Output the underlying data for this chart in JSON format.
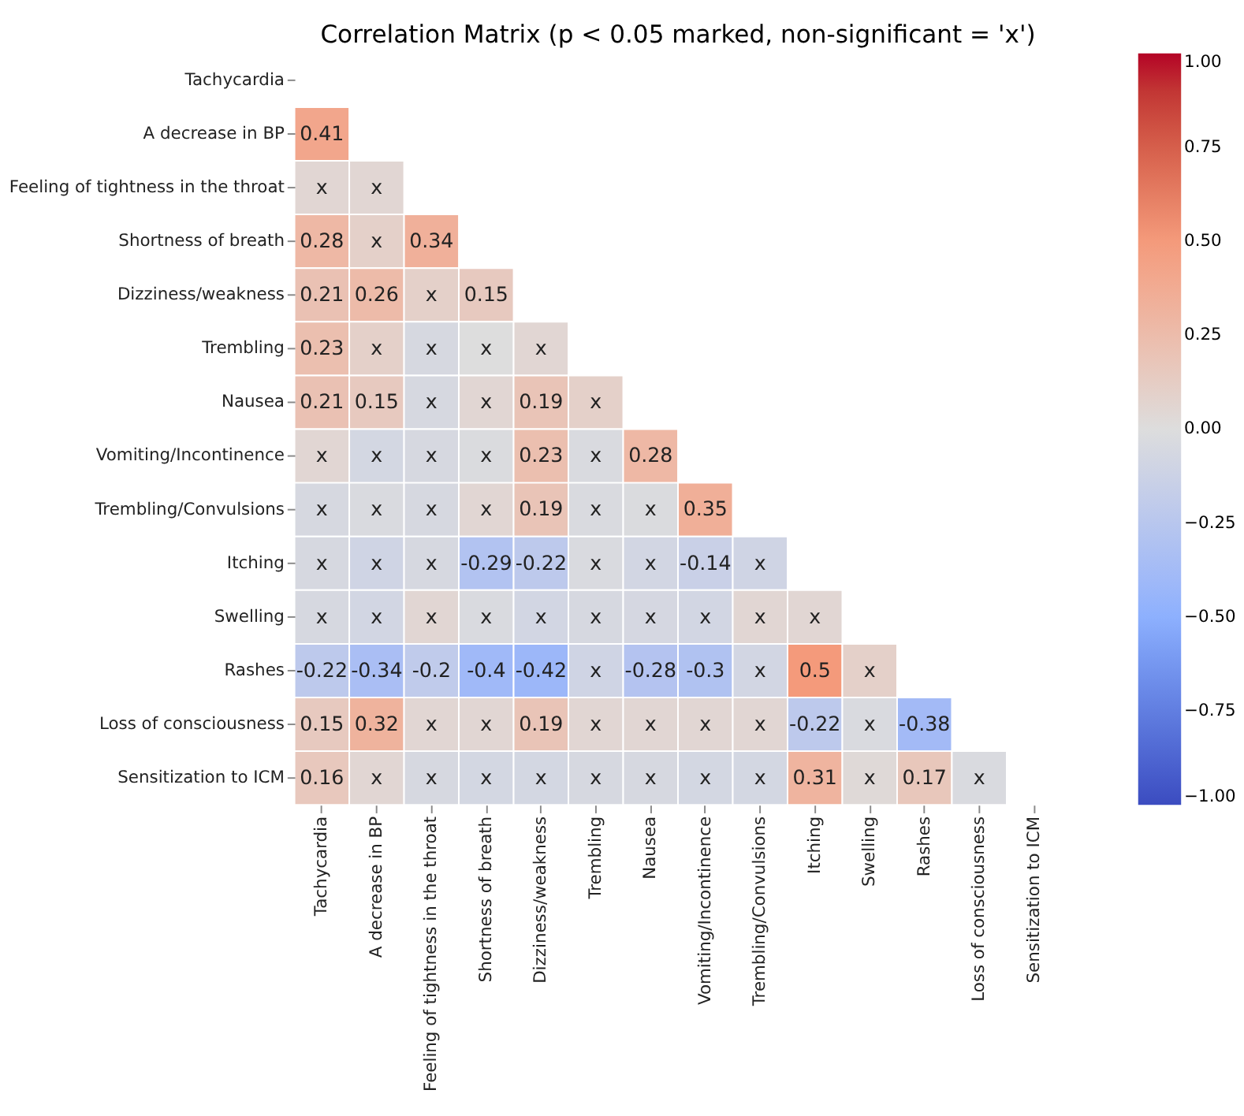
{
  "chart_data": {
    "type": "heatmap",
    "title": "Correlation Matrix (p < 0.05 marked, non-significant = 'x')",
    "categories": [
      "Tachycardia",
      "A decrease in BP",
      "Feeling of tightness in the throat",
      "Shortness of breath",
      "Dizziness/weakness",
      "Trembling",
      "Nausea",
      "Vomiting/Incontinence",
      "Trembling/Convulsions",
      "Itching",
      "Swelling",
      "Rashes",
      "Loss of consciousness",
      "Sensitization to ICM"
    ],
    "y_categories": [
      "Tachycardia",
      "A decrease in BP",
      "Feeling of tightness in the throat",
      "Shortness of breath",
      "Dizziness/weakness",
      "Trembling",
      "Nausea",
      "Vomiting/Incontinence",
      "Trembling/Convulsions",
      "Itching",
      "Swelling",
      "Rashes",
      "Loss of consciousness",
      "Sensitization to ICM"
    ],
    "cells": [
      [
        null,
        null,
        null,
        null,
        null,
        null,
        null,
        null,
        null,
        null,
        null,
        null,
        null,
        null
      ],
      [
        0.41,
        null,
        null,
        null,
        null,
        null,
        null,
        null,
        null,
        null,
        null,
        null,
        null,
        null
      ],
      [
        0.05,
        0.05,
        null,
        null,
        null,
        null,
        null,
        null,
        null,
        null,
        null,
        null,
        null,
        null
      ],
      [
        0.28,
        0.1,
        0.34,
        null,
        null,
        null,
        null,
        null,
        null,
        null,
        null,
        null,
        null,
        null
      ],
      [
        0.21,
        0.26,
        0.1,
        0.15,
        null,
        null,
        null,
        null,
        null,
        null,
        null,
        null,
        null,
        null
      ],
      [
        0.23,
        0.1,
        -0.05,
        0.0,
        0.05,
        null,
        null,
        null,
        null,
        null,
        null,
        null,
        null,
        null
      ],
      [
        0.21,
        0.15,
        -0.05,
        0.05,
        0.19,
        0.1,
        null,
        null,
        null,
        null,
        null,
        null,
        null,
        null
      ],
      [
        0.05,
        -0.07,
        -0.05,
        -0.02,
        0.23,
        -0.03,
        0.28,
        null,
        null,
        null,
        null,
        null,
        null,
        null
      ],
      [
        -0.05,
        -0.03,
        -0.05,
        0.05,
        0.19,
        -0.03,
        -0.02,
        0.35,
        null,
        null,
        null,
        null,
        null,
        null
      ],
      [
        -0.05,
        -0.1,
        -0.05,
        -0.29,
        -0.22,
        -0.03,
        -0.08,
        -0.14,
        -0.1,
        null,
        null,
        null,
        null,
        null
      ],
      [
        -0.05,
        -0.08,
        0.05,
        -0.03,
        -0.08,
        -0.05,
        -0.06,
        -0.08,
        0.05,
        0.05,
        null,
        null,
        null,
        null
      ],
      [
        -0.22,
        -0.34,
        -0.2,
        -0.4,
        -0.42,
        -0.1,
        -0.28,
        -0.3,
        -0.08,
        0.5,
        0.1,
        null,
        null,
        null
      ],
      [
        0.15,
        0.32,
        0.05,
        0.05,
        0.19,
        0.05,
        0.05,
        0.05,
        0.05,
        -0.22,
        -0.03,
        -0.38,
        null,
        null
      ],
      [
        0.16,
        0.05,
        -0.05,
        -0.07,
        -0.07,
        -0.05,
        -0.05,
        -0.07,
        -0.07,
        0.31,
        0.03,
        0.17,
        -0.03,
        null
      ]
    ],
    "cell_labels": [
      [
        null,
        null,
        null,
        null,
        null,
        null,
        null,
        null,
        null,
        null,
        null,
        null,
        null,
        null
      ],
      [
        "0.41",
        null,
        null,
        null,
        null,
        null,
        null,
        null,
        null,
        null,
        null,
        null,
        null,
        null
      ],
      [
        "x",
        "x",
        null,
        null,
        null,
        null,
        null,
        null,
        null,
        null,
        null,
        null,
        null,
        null
      ],
      [
        "0.28",
        "x",
        "0.34",
        null,
        null,
        null,
        null,
        null,
        null,
        null,
        null,
        null,
        null,
        null
      ],
      [
        "0.21",
        "0.26",
        "x",
        "0.15",
        null,
        null,
        null,
        null,
        null,
        null,
        null,
        null,
        null,
        null
      ],
      [
        "0.23",
        "x",
        "x",
        "x",
        "x",
        null,
        null,
        null,
        null,
        null,
        null,
        null,
        null,
        null
      ],
      [
        "0.21",
        "0.15",
        "x",
        "x",
        "0.19",
        "x",
        null,
        null,
        null,
        null,
        null,
        null,
        null,
        null
      ],
      [
        "x",
        "x",
        "x",
        "x",
        "0.23",
        "x",
        "0.28",
        null,
        null,
        null,
        null,
        null,
        null,
        null
      ],
      [
        "x",
        "x",
        "x",
        "x",
        "0.19",
        "x",
        "x",
        "0.35",
        null,
        null,
        null,
        null,
        null,
        null
      ],
      [
        "x",
        "x",
        "x",
        "-0.29",
        "-0.22",
        "x",
        "x",
        "-0.14",
        "x",
        null,
        null,
        null,
        null,
        null
      ],
      [
        "x",
        "x",
        "x",
        "x",
        "x",
        "x",
        "x",
        "x",
        "x",
        "x",
        null,
        null,
        null,
        null
      ],
      [
        "-0.22",
        "-0.34",
        "-0.2",
        "-0.4",
        "-0.42",
        "x",
        "-0.28",
        "-0.3",
        "x",
        "0.5",
        "x",
        null,
        null,
        null
      ],
      [
        "0.15",
        "0.32",
        "x",
        "x",
        "0.19",
        "x",
        "x",
        "x",
        "x",
        "-0.22",
        "x",
        "-0.38",
        null,
        null
      ],
      [
        "0.16",
        "x",
        "x",
        "x",
        "x",
        "x",
        "x",
        "x",
        "x",
        "0.31",
        "x",
        "0.17",
        "x",
        null
      ]
    ],
    "clim": [
      -1,
      1
    ],
    "cticks": [
      {
        "value": -1,
        "label": "−1.00"
      },
      {
        "value": -0.75,
        "label": "−0.75"
      },
      {
        "value": -0.5,
        "label": "−0.50"
      },
      {
        "value": -0.25,
        "label": "−0.25"
      },
      {
        "value": 0,
        "label": "0.00"
      },
      {
        "value": 0.25,
        "label": "0.25"
      },
      {
        "value": 0.5,
        "label": "0.50"
      },
      {
        "value": 0.75,
        "label": "0.75"
      },
      {
        "value": 1,
        "label": "1.00"
      }
    ]
  }
}
